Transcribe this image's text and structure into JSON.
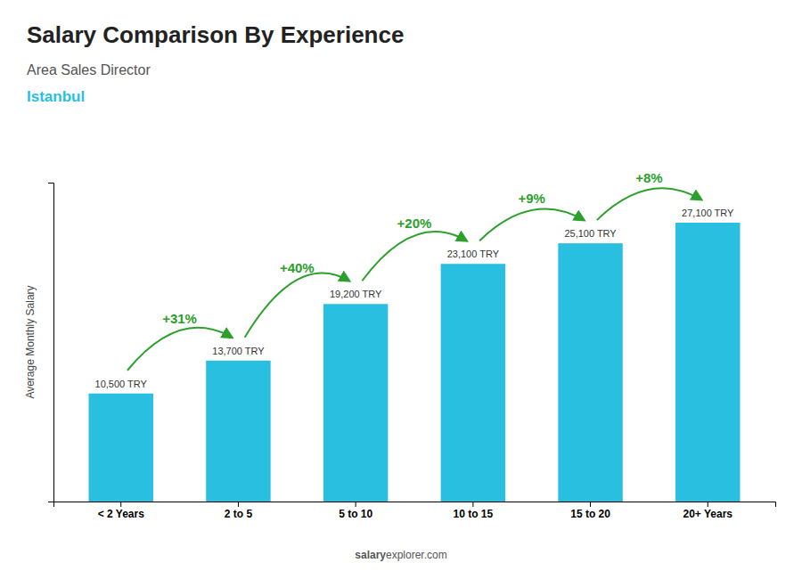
{
  "chart_data": {
    "type": "bar",
    "title": "Salary Comparison By Experience",
    "subtitle": "Area Sales Director",
    "city": "Istanbul",
    "ylabel": "Average Monthly Salary",
    "footer": [
      "salary",
      "explorer.com"
    ],
    "categories": [
      "< 2 Years",
      "2 to 5",
      "5 to 10",
      "10 to 15",
      "15 to 20",
      "20+ Years"
    ],
    "values": [
      10500,
      13700,
      19200,
      23100,
      25100,
      27100
    ],
    "value_labels": [
      "10,500 TRY",
      "13,700 TRY",
      "19,200 TRY",
      "23,100 TRY",
      "25,100 TRY",
      "27,100 TRY"
    ],
    "pct_changes": [
      null,
      "+31%",
      "+40%",
      "+20%",
      "+9%",
      "+8%"
    ],
    "color": "#29bfe0",
    "ylim": [
      0,
      31000
    ],
    "grid": false,
    "data_labels": true,
    "tick_labels": "x"
  }
}
